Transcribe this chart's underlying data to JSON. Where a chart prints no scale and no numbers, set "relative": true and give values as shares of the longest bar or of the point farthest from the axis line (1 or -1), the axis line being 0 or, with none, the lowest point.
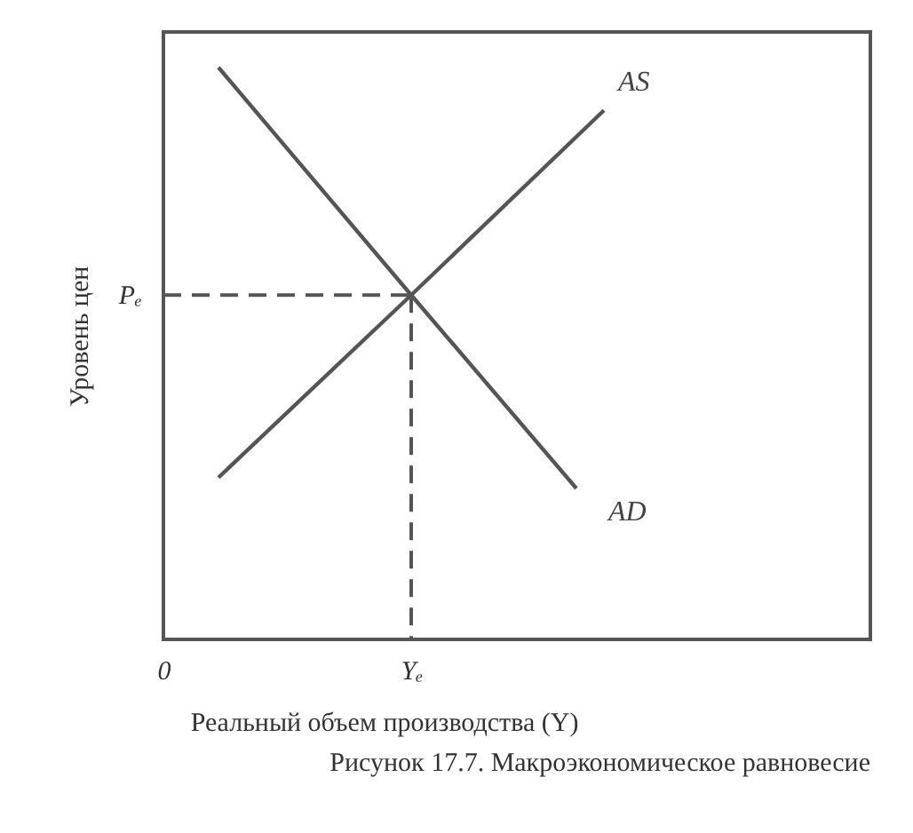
{
  "chart_data": {
    "type": "line",
    "relative": true,
    "xlabel": "Реальный объем производства (Y)",
    "ylabel": "Уровень цен",
    "annotations": [
      "Рисунок 17.7. Макроэкономическое равновесие"
    ],
    "ref_lines": [
      {
        "axis": "y",
        "value": 0.602,
        "label": "Pₑ",
        "line_style": "dashed"
      }
    ],
    "categories": [
      "0",
      null,
      null,
      null,
      null,
      null,
      null,
      null,
      null,
      "Yₑ",
      null,
      null,
      null,
      null,
      null,
      null,
      null
    ],
    "marker": "none",
    "series": [
      {
        "name": "AD",
        "color": "#555555",
        "values": [
          null,
          null,
          1,
          null,
          null,
          null,
          null,
          null,
          null,
          0.602,
          null,
          null,
          null,
          null,
          null,
          0.264,
          null
        ]
      },
      {
        "name": "AS",
        "color": "#555555",
        "values": [
          null,
          null,
          0.283,
          null,
          null,
          null,
          null,
          null,
          null,
          0.602,
          null,
          null,
          null,
          null,
          null,
          null,
          0.925
        ]
      }
    ]
  }
}
